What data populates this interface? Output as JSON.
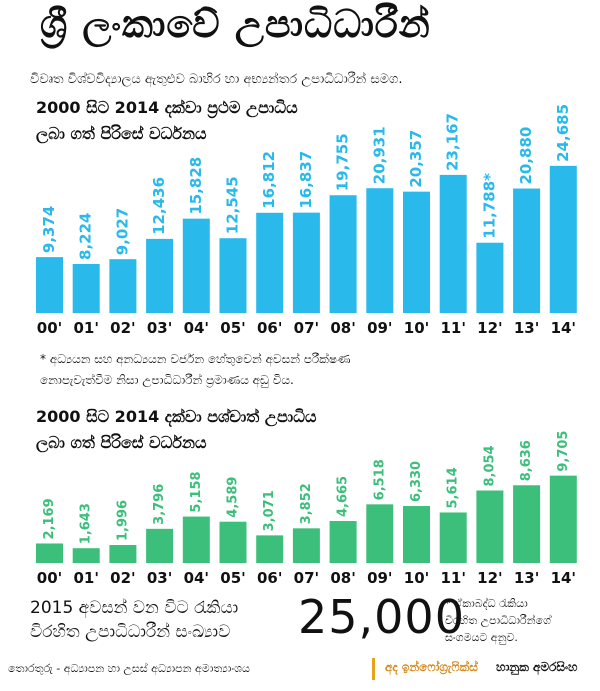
{
  "title": "ශ්‍රී ලංකාවේ උපාධිධාරීන්",
  "subtitle": "විවෘත විශ්වවිද්‍යාලය ඇතුළුව බාහිර හා අභ්‍යන්තර උපාධිධාරීන් සමග.",
  "colors": {
    "chart1_bar": "#29b9ea",
    "chart2_bar": "#3cbf7a",
    "credit_accent": "#e8a21a"
  },
  "chart_data": [
    {
      "type": "bar",
      "title_line1": "2000 සිට 2014 දක්වා ප්‍රථම උපාධිය",
      "title_line2": "ලබා ගත් පිරිසේ වර්ධනය",
      "categories": [
        "00'",
        "01'",
        "02'",
        "03'",
        "04'",
        "05'",
        "06'",
        "07'",
        "08'",
        "09'",
        "10'",
        "11'",
        "12'",
        "13'",
        "14'"
      ],
      "values": [
        9374,
        8224,
        9027,
        12436,
        15828,
        12545,
        16812,
        16837,
        19755,
        20931,
        20357,
        23167,
        11788,
        20880,
        24685
      ],
      "value_labels": [
        "9,374",
        "8,224",
        "9,027",
        "12,436",
        "15,828",
        "12,545",
        "16,812",
        "16,837",
        "19,755",
        "20,931",
        "20,357",
        "23,167",
        "11,788*",
        "20,880",
        "24,685"
      ],
      "ylim": [
        0,
        25500
      ]
    },
    {
      "type": "bar",
      "title_line1": "2000 සිට 2014 දක්වා පශ්චාත් උපාධිය",
      "title_line2": "ලබා ගත් පිරිසේ වර්ධනය",
      "categories": [
        "00'",
        "01'",
        "02'",
        "03'",
        "04'",
        "05'",
        "06'",
        "07'",
        "08'",
        "09'",
        "10'",
        "11'",
        "12'",
        "13'",
        "14'"
      ],
      "values": [
        2169,
        1643,
        1996,
        3796,
        5158,
        4589,
        3071,
        3852,
        4665,
        6518,
        6330,
        5614,
        8054,
        8636,
        9705
      ],
      "value_labels": [
        "2,169",
        "1,643",
        "1,996",
        "3,796",
        "5,158",
        "4,589",
        "3,071",
        "3,852",
        "4,665",
        "6,518",
        "6,330",
        "5,614",
        "8,054",
        "8,636",
        "9,705"
      ],
      "ylim": [
        0,
        10000
      ]
    }
  ],
  "footnote": {
    "line1": "* අධ්‍යයන සහ අනධ්‍යයන වර්ජන හේතුවෙන් අවසන් පරීක්ෂණ",
    "line2": "නොපැවැත්වීම නිසා උපාධිධාරීන් ප්‍රමාණය අඩු විය."
  },
  "summary": {
    "line1": "2015 අවසන් වන විට රැකියා",
    "line2": "විරහිත උපාධිධාරීන් සංඛ්‍යාව",
    "number": "25,000",
    "note1": "* ඒකාබද්ධ රැකියා",
    "note2": "විරහිත උපාධිධාරීන්ගේ",
    "note3": "සංගමයට අනුව."
  },
  "source": "තොරතුරු - අධ්‍යාපන හා උසස් අධ්‍යාපන අමාත්‍යාංශය",
  "credit": {
    "brand": "අද ඉන්ෆෝග්‍රැෆික්ස්",
    "name": "හානුක අමරසිංහ"
  }
}
